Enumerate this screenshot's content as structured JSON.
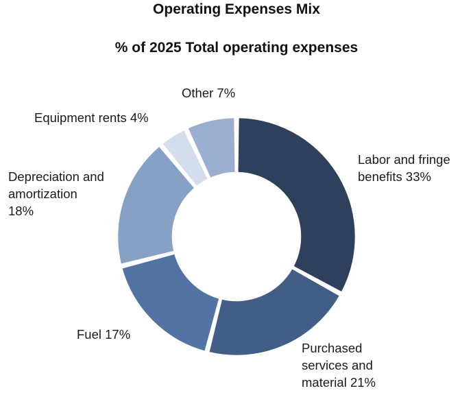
{
  "chart_data": {
    "type": "pie",
    "title": "Operating Expenses Mix",
    "subtitle": "% of 2025 Total operating expenses",
    "slices": [
      {
        "label": "Labor and fringe benefits 33%",
        "value": 33,
        "color": "#2e405c"
      },
      {
        "label": "Purchased services and material 21%",
        "value": 21,
        "color": "#435e86"
      },
      {
        "label": "Fuel 17%",
        "value": 17,
        "color": "#5273a3"
      },
      {
        "label": "Depreciation and amortization 18%",
        "value": 18,
        "color": "#87a0c5"
      },
      {
        "label": "Equipment rents 4%",
        "value": 4,
        "color": "#d3ddeb"
      },
      {
        "label": "Other 7%",
        "value": 7,
        "color": "#9aaed0"
      }
    ]
  }
}
